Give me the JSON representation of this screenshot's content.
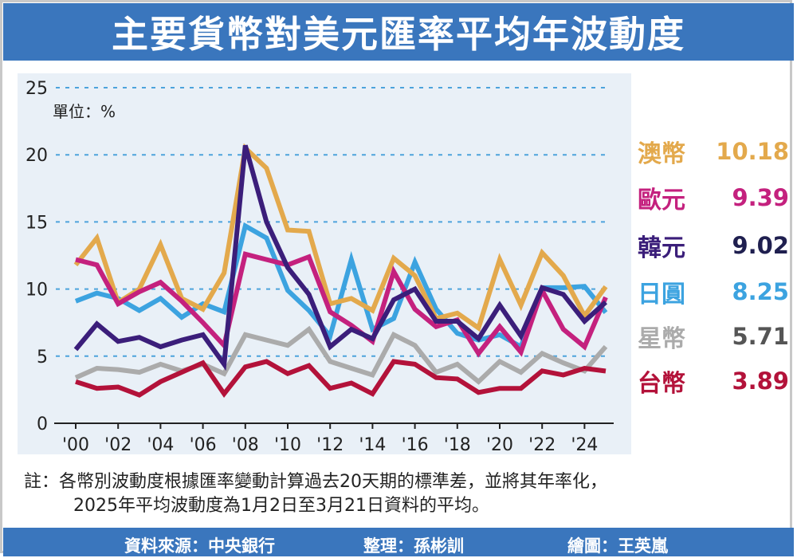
{
  "title": "主要貨幣對美元匯率平均年波動度",
  "unit_label": "單位：%",
  "note": {
    "line1": "註：各幣別波動度根據匯率變動計算過去20天期的標準差，並將其年率化，",
    "line2": "2025年平均波動度為1月2日至3月21日資料的平均。"
  },
  "footer": {
    "source": "資料來源：中央銀行",
    "editor": "整理：孫彬訓",
    "illustrator": "繪圖：王英嵐"
  },
  "chart_data": {
    "type": "line",
    "title": "主要貨幣對美元匯率平均年波動度",
    "ylabel": "單位：%",
    "ylim": [
      0,
      25
    ],
    "yticks": [
      "0",
      "5",
      "10",
      "15",
      "20",
      "25"
    ],
    "x": [
      2000,
      2001,
      2002,
      2003,
      2004,
      2005,
      2006,
      2007,
      2008,
      2009,
      2010,
      2011,
      2012,
      2013,
      2014,
      2015,
      2016,
      2017,
      2018,
      2019,
      2020,
      2021,
      2022,
      2023,
      2024,
      2025
    ],
    "xticks": [
      "'00",
      "'02",
      "'04",
      "'06",
      "'08",
      "'10",
      "'12",
      "'14",
      "'16",
      "'18",
      "'20",
      "'22",
      "'24"
    ],
    "xtick_years": [
      2000,
      2002,
      2004,
      2006,
      2008,
      2010,
      2012,
      2014,
      2016,
      2018,
      2020,
      2022,
      2024
    ],
    "series": [
      {
        "name": "澳幣",
        "label_value": "10.18",
        "color": "#e3a94c",
        "values": [
          11.8,
          13.8,
          9.0,
          10.0,
          13.3,
          9.3,
          8.5,
          11.2,
          20.5,
          19.0,
          14.4,
          14.3,
          8.9,
          9.3,
          8.4,
          12.3,
          11.0,
          7.8,
          8.2,
          7.1,
          12.2,
          8.8,
          12.7,
          11.0,
          8.0,
          10.18
        ]
      },
      {
        "name": "歐元",
        "label_value": "9.39",
        "color": "#c4217e",
        "values": [
          12.2,
          11.8,
          8.9,
          9.8,
          10.5,
          9.1,
          7.5,
          5.8,
          12.6,
          12.2,
          11.8,
          12.4,
          8.3,
          7.3,
          6.1,
          11.3,
          8.5,
          7.2,
          7.7,
          5.2,
          7.2,
          5.3,
          9.9,
          7.0,
          5.7,
          9.39
        ]
      },
      {
        "name": "韓元",
        "label_value": "9.02",
        "color": "#3b1e7a",
        "values": [
          5.5,
          7.4,
          6.1,
          6.4,
          5.7,
          6.2,
          6.6,
          4.4,
          20.7,
          15.0,
          11.6,
          9.6,
          5.7,
          7.0,
          6.3,
          9.2,
          10.0,
          7.6,
          7.6,
          6.3,
          8.8,
          6.5,
          10.1,
          9.6,
          7.6,
          9.02
        ]
      },
      {
        "name": "日圓",
        "label_value": "8.25",
        "color": "#3ca3e0",
        "values": [
          9.1,
          9.7,
          9.3,
          8.4,
          9.3,
          7.9,
          8.9,
          8.3,
          14.7,
          13.8,
          9.9,
          8.4,
          6.5,
          12.2,
          7.0,
          7.8,
          12.0,
          8.5,
          6.7,
          6.2,
          6.6,
          5.7,
          10.1,
          10.1,
          10.2,
          8.25
        ]
      },
      {
        "name": "星幣",
        "label_value": "5.71",
        "color": "#ababab",
        "values": [
          3.4,
          4.1,
          4.0,
          3.8,
          4.4,
          3.9,
          4.4,
          3.7,
          6.6,
          6.2,
          5.8,
          7.0,
          4.6,
          4.1,
          3.6,
          6.6,
          5.8,
          3.8,
          4.4,
          3.1,
          4.6,
          3.8,
          5.2,
          4.5,
          3.9,
          5.71
        ]
      },
      {
        "name": "台幣",
        "label_value": "3.89",
        "color": "#b3123a",
        "values": [
          3.1,
          2.6,
          2.7,
          2.1,
          3.1,
          3.8,
          4.5,
          2.2,
          4.2,
          4.6,
          3.7,
          4.3,
          2.6,
          3.0,
          2.2,
          4.6,
          4.4,
          3.4,
          3.3,
          2.3,
          2.6,
          2.6,
          3.9,
          3.6,
          4.1,
          3.89
        ]
      }
    ]
  }
}
